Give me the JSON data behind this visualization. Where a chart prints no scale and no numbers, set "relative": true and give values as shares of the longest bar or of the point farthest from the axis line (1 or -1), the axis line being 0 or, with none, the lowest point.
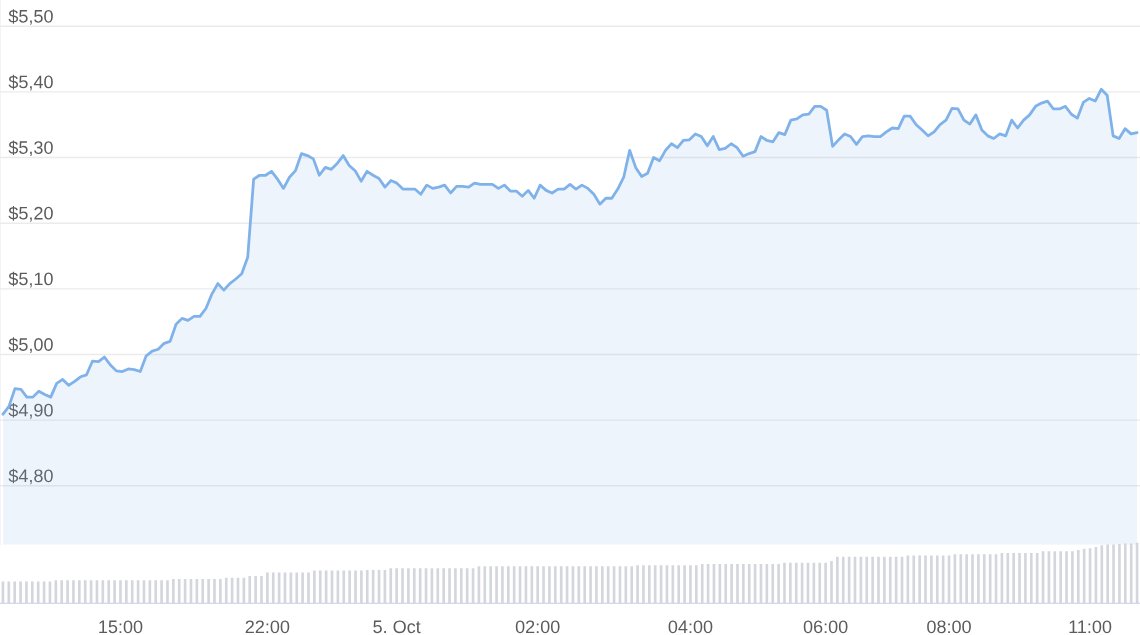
{
  "chart_data": [
    {
      "type": "area",
      "color": "#80b2ea",
      "grid": "y",
      "tick_labels": "y",
      "ylim": [
        4.71,
        5.54
      ],
      "yticks": [
        {
          "value": 4.8,
          "label": "$4,80"
        },
        {
          "value": 4.9,
          "label": "$4,90"
        },
        {
          "value": 5.0,
          "label": "$5,00"
        },
        {
          "value": 5.1,
          "label": "$5,10"
        },
        {
          "value": 5.2,
          "label": "$5,20"
        },
        {
          "value": 5.3,
          "label": "$5,30"
        },
        {
          "value": 5.4,
          "label": "$5,40"
        },
        {
          "value": 5.5,
          "label": "$5,50"
        }
      ],
      "categories": [
        null,
        null,
        null,
        null,
        null,
        null,
        null,
        null,
        null,
        null,
        null,
        null,
        null,
        null,
        null,
        null,
        null,
        null,
        null,
        null,
        null,
        null,
        null,
        null,
        null,
        null,
        null,
        null,
        null,
        null,
        null,
        null,
        null,
        null,
        null,
        null,
        null,
        null,
        null,
        null,
        null,
        null,
        null,
        null,
        null,
        null,
        null,
        null,
        null,
        null,
        null,
        null,
        null,
        null,
        null,
        null,
        null,
        null,
        null,
        null,
        null,
        null,
        null,
        null,
        null,
        null,
        null,
        null,
        null,
        null,
        null,
        null,
        null,
        null,
        null,
        null,
        null,
        null,
        null,
        null,
        null,
        null,
        null,
        null,
        null,
        null,
        null,
        null,
        null,
        null,
        null,
        null,
        null,
        null,
        null,
        null,
        null,
        null,
        null,
        null,
        null,
        null,
        null,
        null,
        null,
        null,
        null,
        null,
        null,
        null,
        null,
        null,
        null,
        null,
        null,
        null,
        null,
        null,
        null,
        null,
        null,
        null,
        null,
        null,
        null,
        null,
        null,
        null,
        null,
        null,
        null,
        null,
        null,
        null,
        null,
        null,
        null,
        null,
        null,
        null,
        null,
        null,
        null,
        null,
        null,
        null,
        null,
        null,
        null,
        null,
        null,
        null,
        null,
        null,
        null,
        null,
        null,
        null,
        null,
        null,
        null,
        null,
        null,
        null,
        null,
        null,
        null,
        null,
        null,
        null,
        null,
        null,
        null,
        null,
        null,
        null,
        null,
        null,
        null,
        null,
        null,
        null,
        null,
        null,
        null,
        null,
        null,
        null,
        null,
        null,
        null
      ],
      "values": [
        4.909,
        4.921,
        4.948,
        4.947,
        4.935,
        4.935,
        4.944,
        4.939,
        4.935,
        4.956,
        4.962,
        4.953,
        4.959,
        4.966,
        4.969,
        4.99,
        4.989,
        4.996,
        4.984,
        4.975,
        4.974,
        4.978,
        4.977,
        4.974,
        4.998,
        5.005,
        5.008,
        5.017,
        5.02,
        5.046,
        5.055,
        5.052,
        5.058,
        5.058,
        5.07,
        5.092,
        5.108,
        5.098,
        5.108,
        5.115,
        5.123,
        5.148,
        5.267,
        5.273,
        5.273,
        5.279,
        5.267,
        5.253,
        5.27,
        5.28,
        5.306,
        5.303,
        5.298,
        5.273,
        5.285,
        5.282,
        5.291,
        5.303,
        5.288,
        5.28,
        5.264,
        5.279,
        5.273,
        5.268,
        5.255,
        5.265,
        5.261,
        5.252,
        5.252,
        5.252,
        5.244,
        5.258,
        5.253,
        5.255,
        5.258,
        5.246,
        5.256,
        5.256,
        5.255,
        5.261,
        5.259,
        5.259,
        5.259,
        5.253,
        5.258,
        5.249,
        5.249,
        5.241,
        5.25,
        5.238,
        5.258,
        5.25,
        5.246,
        5.252,
        5.252,
        5.259,
        5.252,
        5.258,
        5.253,
        5.244,
        5.229,
        5.238,
        5.238,
        5.252,
        5.27,
        5.311,
        5.285,
        5.271,
        5.276,
        5.3,
        5.295,
        5.311,
        5.321,
        5.315,
        5.326,
        5.327,
        5.336,
        5.332,
        5.318,
        5.332,
        5.312,
        5.314,
        5.321,
        5.315,
        5.302,
        5.306,
        5.309,
        5.332,
        5.326,
        5.324,
        5.338,
        5.335,
        5.357,
        5.359,
        5.365,
        5.366,
        5.378,
        5.378,
        5.372,
        5.317,
        5.327,
        5.336,
        5.332,
        5.32,
        5.332,
        5.333,
        5.332,
        5.332,
        5.339,
        5.345,
        5.344,
        5.363,
        5.363,
        5.35,
        5.342,
        5.333,
        5.339,
        5.35,
        5.357,
        5.375,
        5.374,
        5.357,
        5.351,
        5.365,
        5.342,
        5.333,
        5.329,
        5.336,
        5.333,
        5.357,
        5.345,
        5.357,
        5.365,
        5.378,
        5.383,
        5.386,
        5.374,
        5.374,
        5.378,
        5.366,
        5.36,
        5.384,
        5.39,
        5.386,
        5.404,
        5.395,
        5.333,
        5.329,
        5.344,
        5.336,
        5.338
      ]
    },
    {
      "type": "bar",
      "color": "#d3d6dd",
      "relative": true,
      "tick_labels": "x",
      "categories": [
        null,
        null,
        null,
        null,
        null,
        null,
        null,
        null,
        null,
        null,
        null,
        null,
        null,
        null,
        null,
        null,
        null,
        null,
        null,
        null,
        "15:00",
        null,
        null,
        null,
        null,
        null,
        null,
        null,
        null,
        null,
        null,
        null,
        null,
        null,
        null,
        null,
        null,
        null,
        null,
        null,
        null,
        null,
        null,
        null,
        null,
        "22:00",
        null,
        null,
        null,
        null,
        null,
        null,
        null,
        null,
        null,
        null,
        null,
        null,
        null,
        null,
        null,
        null,
        null,
        null,
        null,
        null,
        null,
        "5. Oct",
        null,
        null,
        null,
        null,
        null,
        null,
        null,
        null,
        null,
        null,
        null,
        null,
        null,
        null,
        null,
        null,
        null,
        null,
        null,
        null,
        null,
        null,
        null,
        "02:00",
        null,
        null,
        null,
        null,
        null,
        null,
        null,
        null,
        null,
        null,
        null,
        null,
        null,
        null,
        null,
        null,
        null,
        null,
        null,
        null,
        null,
        null,
        null,
        null,
        null,
        "04:00",
        null,
        null,
        null,
        null,
        null,
        null,
        null,
        null,
        null,
        null,
        null,
        null,
        null,
        null,
        null,
        null,
        null,
        null,
        null,
        null,
        null,
        null,
        "06:00",
        null,
        null,
        null,
        null,
        null,
        null,
        null,
        null,
        null,
        null,
        null,
        null,
        null,
        null,
        null,
        null,
        null,
        null,
        null,
        null,
        "08:00",
        null,
        null,
        null,
        null,
        null,
        null,
        null,
        null,
        null,
        null,
        null,
        null,
        null,
        null,
        null,
        null,
        null,
        null,
        null,
        null,
        null,
        null,
        null,
        "11:00",
        null,
        null,
        null,
        null,
        null,
        null,
        null,
        null
      ],
      "values": [
        0.36,
        0.36,
        0.36,
        0.36,
        0.36,
        0.36,
        0.36,
        0.36,
        0.36,
        0.38,
        0.38,
        0.38,
        0.38,
        0.38,
        0.38,
        0.38,
        0.38,
        0.38,
        0.38,
        0.38,
        0.38,
        0.38,
        0.38,
        0.38,
        0.38,
        0.38,
        0.38,
        0.38,
        0.38,
        0.4,
        0.4,
        0.4,
        0.4,
        0.4,
        0.4,
        0.4,
        0.4,
        0.4,
        0.42,
        0.42,
        0.42,
        0.42,
        0.45,
        0.45,
        0.45,
        0.51,
        0.51,
        0.51,
        0.51,
        0.51,
        0.51,
        0.51,
        0.51,
        0.54,
        0.54,
        0.54,
        0.54,
        0.54,
        0.54,
        0.54,
        0.54,
        0.54,
        0.55,
        0.55,
        0.55,
        0.55,
        0.58,
        0.58,
        0.58,
        0.58,
        0.58,
        0.58,
        0.58,
        0.58,
        0.58,
        0.58,
        0.58,
        0.58,
        0.58,
        0.58,
        0.58,
        0.61,
        0.61,
        0.61,
        0.61,
        0.61,
        0.61,
        0.61,
        0.61,
        0.61,
        0.61,
        0.61,
        0.61,
        0.61,
        0.61,
        0.61,
        0.61,
        0.61,
        0.61,
        0.61,
        0.61,
        0.61,
        0.61,
        0.61,
        0.61,
        0.61,
        0.61,
        0.61,
        0.63,
        0.63,
        0.63,
        0.63,
        0.63,
        0.63,
        0.63,
        0.63,
        0.63,
        0.63,
        0.63,
        0.65,
        0.65,
        0.65,
        0.65,
        0.65,
        0.65,
        0.65,
        0.65,
        0.65,
        0.65,
        0.65,
        0.65,
        0.65,
        0.65,
        0.67,
        0.67,
        0.67,
        0.67,
        0.67,
        0.67,
        0.67,
        0.67,
        0.7,
        0.77,
        0.77,
        0.77,
        0.77,
        0.77,
        0.77,
        0.77,
        0.77,
        0.77,
        0.77,
        0.77,
        0.77,
        0.79,
        0.79,
        0.79,
        0.79,
        0.79,
        0.79,
        0.79,
        0.79,
        0.81,
        0.81,
        0.81,
        0.81,
        0.81,
        0.81,
        0.81,
        0.81,
        0.83,
        0.83,
        0.83,
        0.83,
        0.83,
        0.83,
        0.83,
        0.86,
        0.86,
        0.86,
        0.86,
        0.86,
        0.86,
        0.88,
        0.9,
        0.91,
        0.93,
        0.96,
        0.97,
        0.97,
        0.98,
        0.99,
        0.99,
        1.0
      ]
    }
  ]
}
